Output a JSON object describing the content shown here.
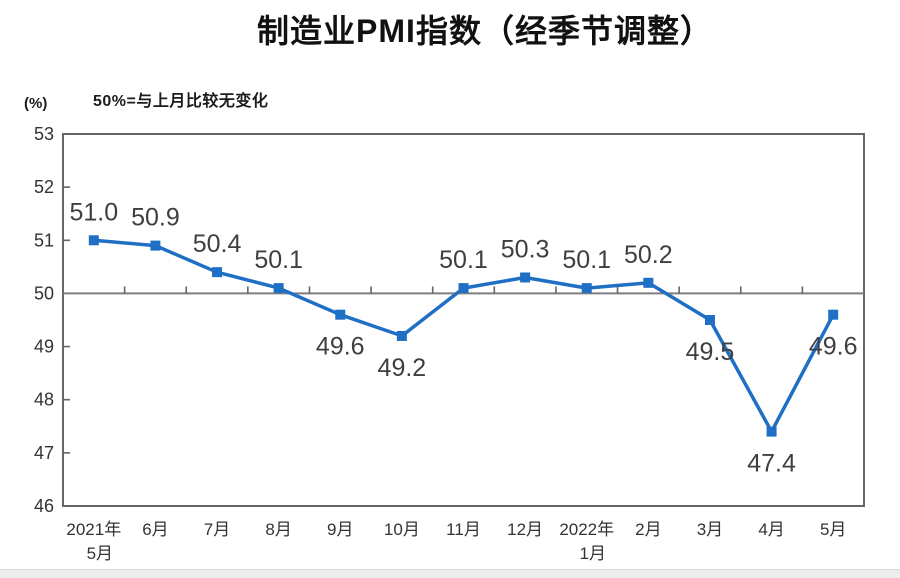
{
  "page": {
    "title": "制造业PMI指数（经季节调整）",
    "note": "50%=与上月比较无变化",
    "y_axis_unit": "(%)"
  },
  "chart_data": {
    "type": "line",
    "title": "制造业PMI指数（经季节调整）",
    "subtitle": "50%=与上月比较无变化",
    "unit": "(%)",
    "categories": [
      "2021年5月",
      "6月",
      "7月",
      "8月",
      "9月",
      "10月",
      "11月",
      "12月",
      "2022年1月",
      "2月",
      "3月",
      "4月",
      "5月"
    ],
    "category_label_lines": [
      [
        "2021年",
        "5月"
      ],
      [
        "6月"
      ],
      [
        "7月"
      ],
      [
        "8月"
      ],
      [
        "9月"
      ],
      [
        "10月"
      ],
      [
        "11月"
      ],
      [
        "12月"
      ],
      [
        "2022年",
        "1月"
      ],
      [
        "2月"
      ],
      [
        "3月"
      ],
      [
        "4月"
      ],
      [
        "5月"
      ]
    ],
    "series": [
      {
        "name": "制造业PMI",
        "values": [
          51.0,
          50.9,
          50.4,
          50.1,
          49.6,
          49.2,
          50.1,
          50.3,
          50.1,
          50.2,
          49.5,
          47.4,
          49.6
        ]
      }
    ],
    "data_label_positions": [
      "above",
      "above",
      "above",
      "above",
      "below",
      "below",
      "above",
      "above",
      "above",
      "above",
      "below",
      "below",
      "below"
    ],
    "ylim": [
      46,
      53
    ],
    "y_ticks": [
      53,
      52,
      51,
      50,
      49,
      48,
      47,
      46
    ],
    "reference_line": 50,
    "grid": false,
    "legend": "none",
    "colors": {
      "line": "#1F6FC5",
      "marker": "#1F6FC5",
      "data_label": "#3f3f3f",
      "axis_border": "#666666",
      "reference_line": "#7f7f7f",
      "tick": "#666666",
      "tick_label": "#333333",
      "title": "#111111"
    }
  }
}
